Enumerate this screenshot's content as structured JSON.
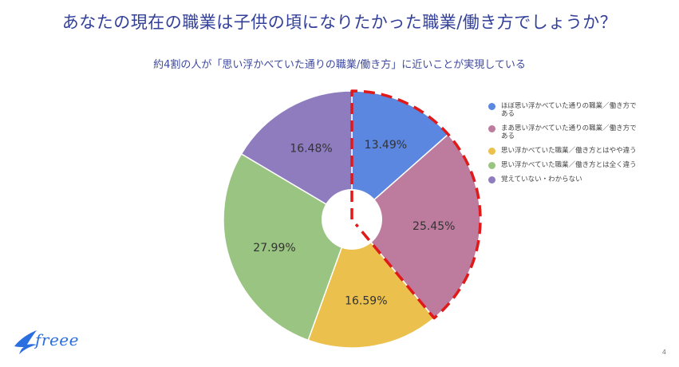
{
  "title": "あなたの現在の職業は子供の頃になりたかった職業/働き方でしょうか？",
  "subtitle": "約4割の人が「思い浮かべていた通りの職業/働き方」に近いことが実現している",
  "chart_data": {
    "type": "pie",
    "donut": true,
    "categories": [
      "ほぼ思い浮かべていた通りの職業／働き方である",
      "まあ思い浮かべていた通りの職業／働き方である",
      "思い浮かべていた職業／働き方とはやや違う",
      "思い浮かべていた職業／働き方とは全く違う",
      "覚えていない・わからない"
    ],
    "values": [
      13.49,
      25.45,
      16.59,
      27.99,
      16.48
    ],
    "value_labels": [
      "13.49%",
      "25.45%",
      "16.59%",
      "27.99%",
      "16.48%"
    ],
    "colors": [
      "#5b87e0",
      "#bd7b9e",
      "#ecc04c",
      "#9ac482",
      "#8e7cbf"
    ],
    "legend_position": "right",
    "highlight": "first two slices outlined with red dashed line",
    "highlight_color": "#e01a1a"
  },
  "legend": [
    {
      "line1": "ほぼ思い浮かべていた通りの職業／働き方で",
      "line2": "ある"
    },
    {
      "line1": "まあ思い浮かべていた通りの職業／働き方で",
      "line2": "ある"
    },
    {
      "line1": "思い浮かべていた職業／働き方とはやや違う",
      "line2": ""
    },
    {
      "line1": "思い浮かべていた職業／働き方とは全く違う",
      "line2": ""
    },
    {
      "line1": "覚えていない・わからない",
      "line2": ""
    }
  ],
  "logo_text": "freee",
  "page_number": "4"
}
